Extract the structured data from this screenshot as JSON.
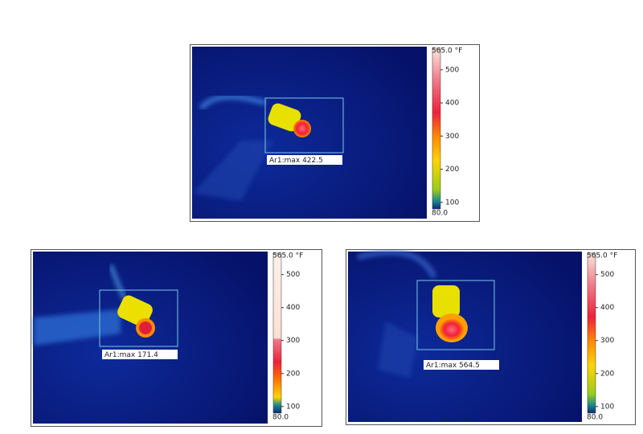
{
  "panels": [
    {
      "scale": {
        "max_label": "565.0 °F",
        "min_label": "80.0",
        "lim": [
          80,
          565
        ],
        "ticks": [
          100,
          200,
          300,
          400,
          500
        ]
      },
      "annotation": "Ar1:max 422.5"
    },
    {
      "scale": {
        "max_label": "565.0 °F",
        "min_label": "80.0",
        "lim": [
          80,
          565
        ],
        "ticks": [
          100,
          200,
          300,
          400,
          500
        ]
      },
      "annotation": "Ar1:max 171.4"
    },
    {
      "scale": {
        "max_label": "565.0 °F",
        "min_label": "80.0",
        "lim": [
          80,
          565
        ],
        "ticks": [
          100,
          200,
          300,
          400,
          500
        ]
      },
      "annotation": "Ar1:max 564.5"
    }
  ]
}
